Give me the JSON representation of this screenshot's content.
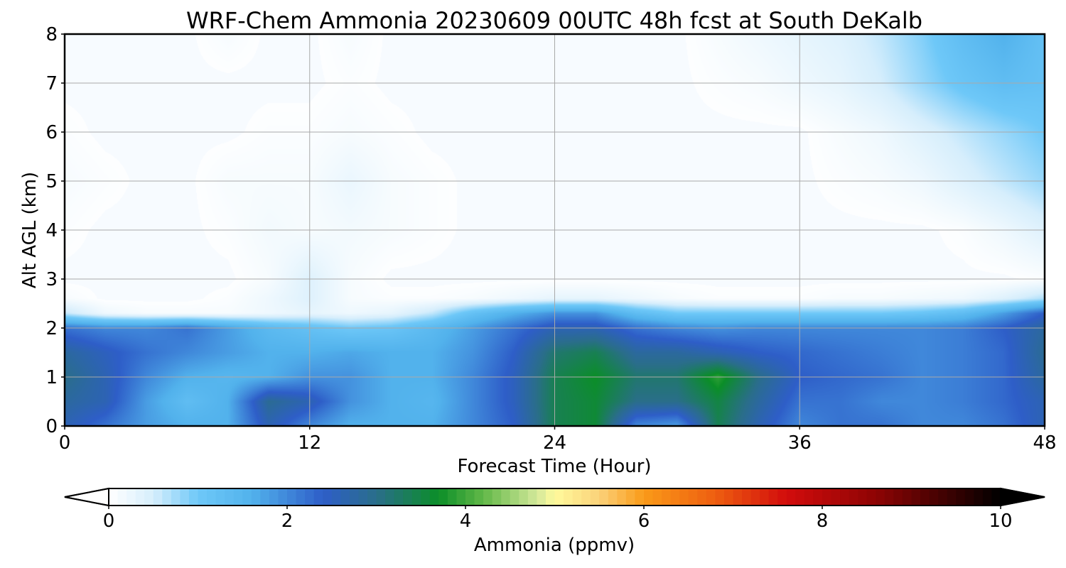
{
  "chart_data": {
    "type": "heatmap",
    "title": "WRF-Chem Ammonia  20230609 00UTC 48h fcst at South DeKalb",
    "xlabel": "Forecast Time (Hour)",
    "ylabel": "Alt AGL (km)",
    "xlim": [
      0,
      48
    ],
    "ylim": [
      0,
      8
    ],
    "xticks": [
      0,
      12,
      24,
      36,
      48
    ],
    "yticks": [
      0,
      1,
      2,
      3,
      4,
      5,
      6,
      7,
      8
    ],
    "grid": true,
    "x": [
      0,
      2,
      4,
      6,
      8,
      10,
      12,
      14,
      16,
      18,
      20,
      22,
      24,
      26,
      28,
      30,
      32,
      34,
      36,
      38,
      40,
      42,
      44,
      46,
      48
    ],
    "y": [
      0,
      0.5,
      1,
      1.5,
      2,
      2.3,
      2.6,
      3,
      4,
      5,
      6,
      7,
      8
    ],
    "z": [
      [
        2.6,
        2.2,
        1.8,
        1.6,
        1.6,
        2.6,
        2.0,
        1.6,
        1.6,
        1.6,
        2.0,
        2.4,
        3.4,
        3.6,
        2.0,
        1.8,
        3.4,
        2.6,
        2.0,
        2.2,
        2.2,
        2.0,
        2.0,
        2.2,
        2.6
      ],
      [
        2.8,
        2.6,
        1.8,
        1.3,
        1.6,
        2.9,
        2.6,
        1.9,
        1.6,
        1.5,
        2.0,
        2.5,
        3.4,
        3.6,
        3.0,
        3.0,
        3.5,
        2.8,
        2.2,
        2.2,
        2.0,
        2.0,
        2.1,
        2.3,
        2.6
      ],
      [
        3.0,
        2.6,
        2.0,
        1.6,
        1.5,
        1.6,
        1.9,
        1.9,
        1.6,
        1.6,
        2.0,
        2.5,
        3.4,
        3.7,
        3.2,
        3.2,
        3.9,
        3.0,
        2.4,
        2.3,
        2.2,
        2.0,
        2.1,
        2.3,
        2.8
      ],
      [
        2.8,
        2.5,
        2.2,
        2.0,
        1.8,
        1.6,
        1.6,
        1.7,
        1.6,
        1.6,
        1.9,
        2.4,
        3.2,
        3.4,
        2.8,
        2.8,
        2.6,
        2.4,
        2.3,
        2.2,
        2.1,
        2.0,
        2.1,
        2.3,
        2.9
      ],
      [
        2.2,
        2.0,
        2.0,
        2.2,
        1.8,
        1.4,
        1.2,
        1.0,
        1.1,
        1.4,
        1.8,
        2.2,
        2.6,
        2.6,
        2.2,
        2.0,
        1.9,
        2.0,
        2.0,
        2.0,
        2.0,
        2.0,
        2.1,
        2.4,
        2.8
      ],
      [
        0.6,
        0.2,
        0.1,
        0.1,
        0.1,
        0.2,
        0.3,
        0.2,
        0.3,
        0.6,
        1.2,
        1.6,
        1.9,
        1.9,
        1.3,
        1.0,
        1.0,
        1.0,
        1.0,
        1.0,
        1.0,
        1.1,
        1.3,
        1.8,
        2.4
      ],
      [
        0.1,
        0.0,
        0.0,
        0.0,
        0.05,
        0.2,
        0.4,
        0.1,
        0.05,
        0.05,
        0.1,
        0.2,
        0.3,
        0.3,
        0.2,
        0.1,
        0.05,
        0.05,
        0.05,
        0.1,
        0.1,
        0.15,
        0.2,
        0.4,
        0.7
      ],
      [
        0.0,
        0.0,
        0.0,
        0.0,
        0.0,
        0.1,
        0.4,
        0.1,
        0.0,
        0.0,
        0.0,
        0.0,
        0.0,
        0.0,
        0.0,
        0.0,
        0.0,
        0.0,
        0.0,
        0.0,
        0.0,
        0.0,
        0.0,
        0.0,
        0.05
      ],
      [
        0.05,
        0.0,
        0.0,
        0.0,
        0.05,
        0.15,
        0.1,
        0.15,
        0.1,
        0.05,
        0.0,
        0.0,
        0.0,
        0.0,
        0.0,
        0.0,
        0.0,
        0.0,
        0.0,
        0.0,
        0.0,
        0.0,
        0.05,
        0.2,
        0.4
      ],
      [
        0.1,
        0.05,
        0.0,
        0.0,
        0.1,
        0.1,
        0.1,
        0.25,
        0.1,
        0.05,
        0.0,
        0.0,
        0.0,
        0.0,
        0.0,
        0.0,
        0.0,
        0.0,
        0.0,
        0.05,
        0.1,
        0.2,
        0.4,
        0.6,
        0.8
      ],
      [
        0.05,
        0.0,
        0.0,
        0.0,
        0.0,
        0.05,
        0.05,
        0.1,
        0.05,
        0.0,
        0.0,
        0.0,
        0.0,
        0.0,
        0.0,
        0.0,
        0.0,
        0.0,
        0.0,
        0.1,
        0.2,
        0.4,
        0.6,
        0.8,
        1.0
      ],
      [
        0.0,
        0.0,
        0.0,
        0.0,
        0.0,
        0.0,
        0.0,
        0.05,
        0.0,
        0.0,
        0.0,
        0.0,
        0.0,
        0.0,
        0.0,
        0.0,
        0.05,
        0.1,
        0.2,
        0.3,
        0.5,
        0.8,
        1.1,
        1.3,
        1.2
      ],
      [
        0.0,
        0.0,
        0.0,
        0.0,
        0.1,
        0.0,
        0.0,
        0.1,
        0.0,
        0.0,
        0.0,
        0.0,
        0.0,
        0.0,
        0.0,
        0.0,
        0.1,
        0.2,
        0.3,
        0.4,
        0.6,
        0.9,
        1.3,
        1.6,
        1.2
      ]
    ],
    "colorbar": {
      "label": "Ammonia  (ppmv)",
      "min": 0,
      "max": 10,
      "ticks": [
        0,
        2,
        4,
        6,
        8,
        10
      ],
      "extend": "both",
      "stops": [
        {
          "v": 0.0,
          "c": "#ffffff"
        },
        {
          "v": 0.5,
          "c": "#d6eefc"
        },
        {
          "v": 1.0,
          "c": "#6ec8f8"
        },
        {
          "v": 1.6,
          "c": "#52b2ec"
        },
        {
          "v": 2.4,
          "c": "#2e5ec8"
        },
        {
          "v": 3.0,
          "c": "#2a6e8a"
        },
        {
          "v": 3.7,
          "c": "#0b8e28"
        },
        {
          "v": 4.2,
          "c": "#62b848"
        },
        {
          "v": 4.8,
          "c": "#d2e89a"
        },
        {
          "v": 5.0,
          "c": "#fffa9c"
        },
        {
          "v": 5.5,
          "c": "#fbd27a"
        },
        {
          "v": 6.0,
          "c": "#fa9a18"
        },
        {
          "v": 6.8,
          "c": "#ee5e10"
        },
        {
          "v": 7.6,
          "c": "#d20c0c"
        },
        {
          "v": 8.6,
          "c": "#8e0404"
        },
        {
          "v": 10.0,
          "c": "#000000"
        }
      ]
    }
  }
}
